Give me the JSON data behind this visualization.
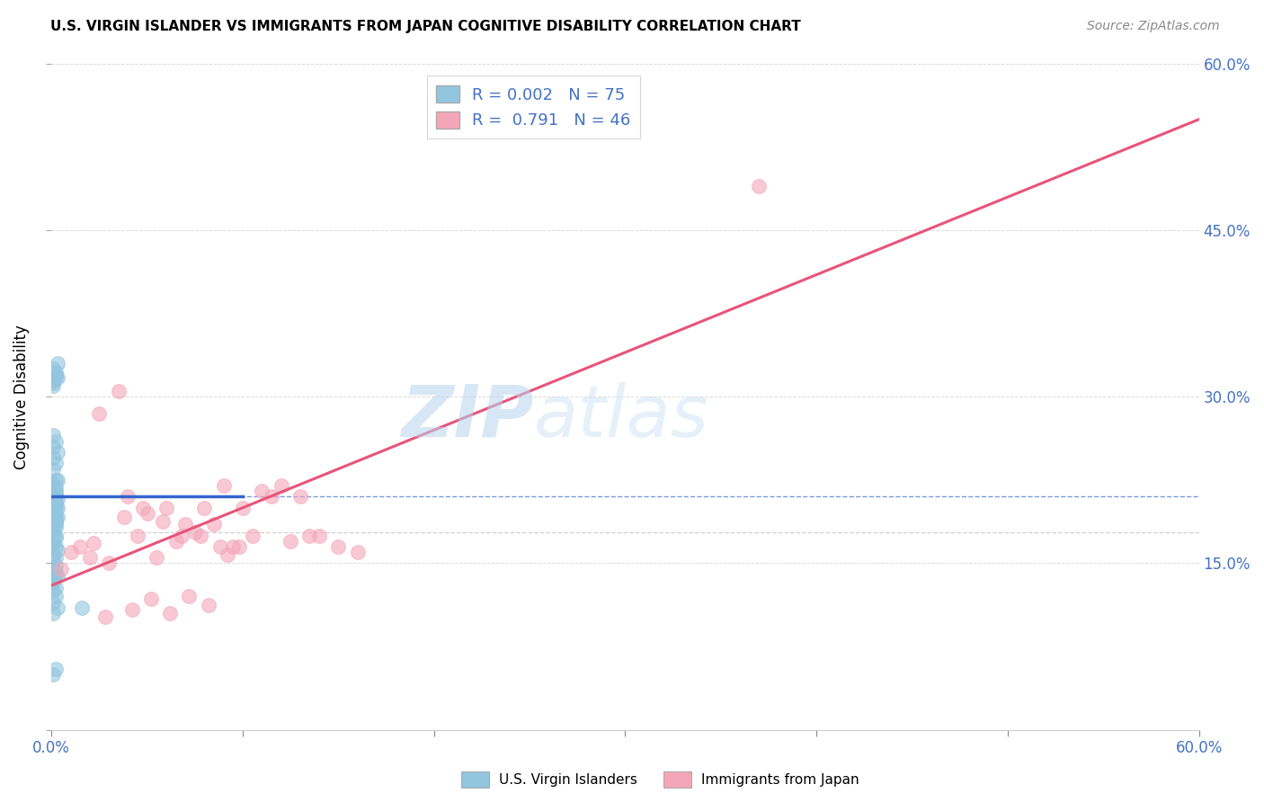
{
  "title": "U.S. VIRGIN ISLANDER VS IMMIGRANTS FROM JAPAN COGNITIVE DISABILITY CORRELATION CHART",
  "source": "Source: ZipAtlas.com",
  "ylabel": "Cognitive Disability",
  "xlim": [
    0.0,
    0.6
  ],
  "ylim": [
    0.0,
    0.6
  ],
  "xticks": [
    0.0,
    0.1,
    0.2,
    0.3,
    0.4,
    0.5,
    0.6
  ],
  "xtick_labels_show": [
    "0.0%",
    "",
    "",
    "",
    "",
    "",
    "60.0%"
  ],
  "yticks": [
    0.0,
    0.15,
    0.3,
    0.45,
    0.6
  ],
  "ytick_labels_right": [
    "",
    "15.0%",
    "30.0%",
    "45.0%",
    "60.0%"
  ],
  "grid_yticks": [
    0.15,
    0.3,
    0.45,
    0.6
  ],
  "legend_r1": "R = 0.002",
  "legend_n1": "N = 75",
  "legend_r2": "R =  0.791",
  "legend_n2": "N = 46",
  "color_blue": "#92c5de",
  "color_pink": "#f4a6b8",
  "color_line_blue": "#3366cc",
  "color_line_pink": "#e8547a",
  "watermark_zip": "ZIP",
  "watermark_atlas": "atlas",
  "blue_hmean": 0.21,
  "pink_trend_x": [
    0.0,
    0.6
  ],
  "pink_trend_y": [
    0.13,
    0.55
  ],
  "blue_trend_x": [
    0.0,
    0.1
  ],
  "blue_trend_y": [
    0.21,
    0.21
  ],
  "blue_scatter_x": [
    0.001,
    0.002,
    0.001,
    0.003,
    0.001,
    0.002,
    0.001,
    0.002,
    0.003,
    0.001,
    0.002,
    0.001,
    0.002,
    0.001,
    0.003,
    0.001,
    0.002,
    0.001,
    0.002,
    0.001,
    0.002,
    0.001,
    0.002,
    0.001,
    0.003,
    0.001,
    0.002,
    0.001,
    0.002,
    0.001,
    0.002,
    0.001,
    0.002,
    0.003,
    0.001,
    0.002,
    0.001,
    0.002,
    0.001,
    0.003,
    0.001,
    0.002,
    0.001,
    0.002,
    0.001,
    0.002,
    0.001,
    0.002,
    0.003,
    0.001,
    0.002,
    0.001,
    0.002,
    0.001,
    0.002,
    0.001,
    0.002,
    0.003,
    0.001,
    0.002,
    0.001,
    0.002,
    0.001,
    0.003,
    0.001,
    0.016,
    0.001,
    0.002,
    0.001,
    0.003,
    0.001,
    0.002,
    0.001,
    0.002,
    0.001
  ],
  "blue_scatter_y": [
    0.325,
    0.32,
    0.315,
    0.33,
    0.31,
    0.318,
    0.312,
    0.322,
    0.317,
    0.315,
    0.2,
    0.195,
    0.185,
    0.205,
    0.192,
    0.198,
    0.19,
    0.215,
    0.21,
    0.22,
    0.225,
    0.215,
    0.218,
    0.212,
    0.208,
    0.222,
    0.205,
    0.21,
    0.215,
    0.218,
    0.213,
    0.208,
    0.203,
    0.225,
    0.198,
    0.195,
    0.19,
    0.188,
    0.193,
    0.2,
    0.18,
    0.175,
    0.178,
    0.183,
    0.17,
    0.165,
    0.168,
    0.173,
    0.162,
    0.158,
    0.155,
    0.152,
    0.148,
    0.145,
    0.14,
    0.135,
    0.142,
    0.138,
    0.133,
    0.128,
    0.125,
    0.12,
    0.115,
    0.11,
    0.105,
    0.11,
    0.235,
    0.24,
    0.245,
    0.25,
    0.255,
    0.26,
    0.265,
    0.055,
    0.05
  ],
  "pink_scatter_x": [
    0.005,
    0.01,
    0.015,
    0.02,
    0.025,
    0.03,
    0.035,
    0.04,
    0.045,
    0.05,
    0.055,
    0.06,
    0.065,
    0.07,
    0.075,
    0.08,
    0.085,
    0.09,
    0.095,
    0.1,
    0.105,
    0.11,
    0.115,
    0.12,
    0.125,
    0.13,
    0.135,
    0.14,
    0.15,
    0.16,
    0.022,
    0.028,
    0.038,
    0.042,
    0.048,
    0.052,
    0.058,
    0.062,
    0.068,
    0.072,
    0.078,
    0.082,
    0.088,
    0.092,
    0.098,
    0.37
  ],
  "pink_scatter_y": [
    0.145,
    0.16,
    0.165,
    0.155,
    0.285,
    0.15,
    0.305,
    0.21,
    0.175,
    0.195,
    0.155,
    0.2,
    0.17,
    0.185,
    0.178,
    0.2,
    0.185,
    0.22,
    0.165,
    0.2,
    0.175,
    0.215,
    0.21,
    0.22,
    0.17,
    0.21,
    0.175,
    0.175,
    0.165,
    0.16,
    0.168,
    0.102,
    0.192,
    0.108,
    0.2,
    0.118,
    0.188,
    0.105,
    0.175,
    0.12,
    0.175,
    0.112,
    0.165,
    0.158,
    0.165,
    0.49
  ]
}
